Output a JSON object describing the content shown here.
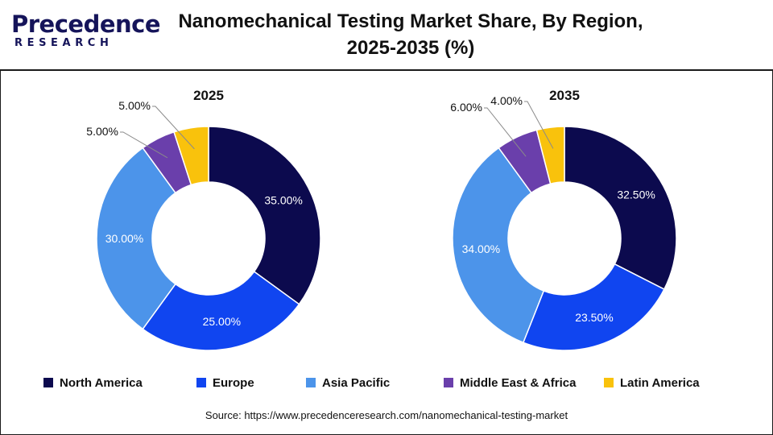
{
  "logo": {
    "top": "Precedence",
    "bottom": "RESEARCH"
  },
  "title_line1": "Nanomechanical Testing Market Share, By Region,",
  "title_line2": "2025-2035 (%)",
  "source": "Source: https://www.precedenceresearch.com/nanomechanical-testing-market",
  "chart_data": {
    "type": "pie",
    "variant": "donut",
    "categories": [
      "North America",
      "Europe",
      "Asia Pacific",
      "Middle East & Africa",
      "Latin America"
    ],
    "colors": [
      "#0c0a4e",
      "#1045f0",
      "#4c94ea",
      "#6a3fab",
      "#f9c20c"
    ],
    "charts": [
      {
        "title": "2025",
        "values": [
          35.0,
          25.0,
          30.0,
          5.0,
          5.0
        ],
        "labels": [
          "35.00%",
          "25.00%",
          "30.00%",
          "5.00%",
          "5.00%"
        ]
      },
      {
        "title": "2035",
        "values": [
          32.5,
          23.5,
          34.0,
          6.0,
          4.0
        ],
        "labels": [
          "32.50%",
          "23.50%",
          "34.00%",
          "6.00%",
          "4.00%"
        ]
      }
    ],
    "legend_position": "bottom"
  }
}
